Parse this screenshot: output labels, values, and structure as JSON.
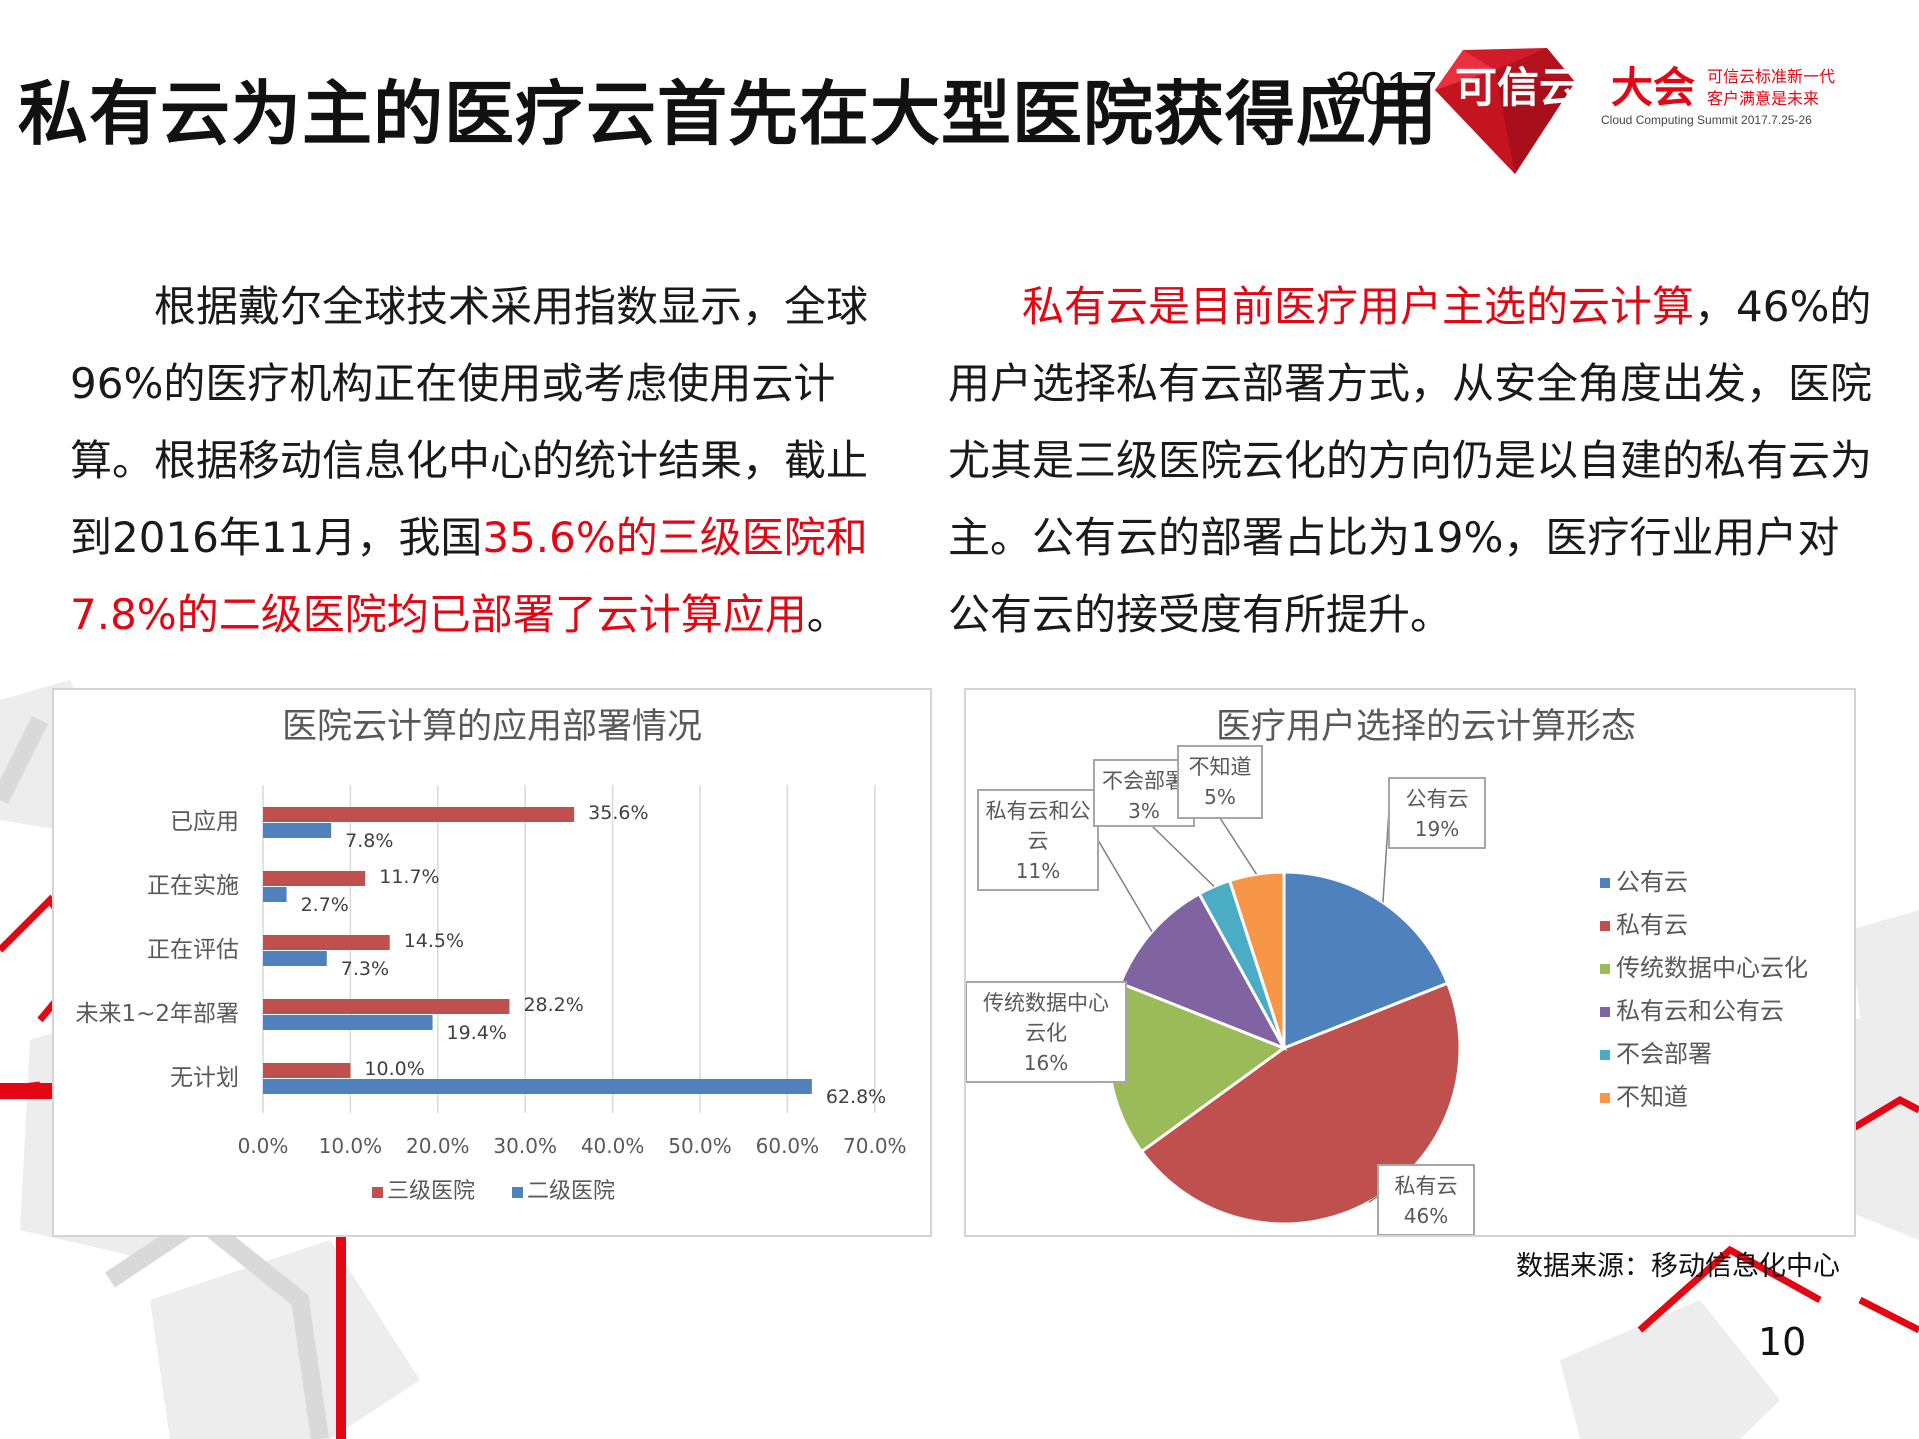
{
  "slide": {
    "title": "私有云为主的医疗云首先在大型医院获得应用",
    "page_number": "10",
    "source_note": "数据来源：移动信息化中心"
  },
  "logo": {
    "year": "2017",
    "brand_a": "可信云",
    "brand_b": "大会",
    "slogan_1": "可信云标准新一代",
    "slogan_2": "客户满意是未来",
    "subtitle": "Cloud Computing Summit 2017.7.25-26"
  },
  "text_left": {
    "segments": [
      {
        "text": "根据戴尔全球技术采用指数显示，全球96%的医疗机构正在使用或考虑使用云计算。根据移动信息化中心的统计结果，截止到2016年11月，我国",
        "highlight": false
      },
      {
        "text": "35.6%的三级医院和7.8%的二级医院均已部署了云计算应用",
        "highlight": true
      },
      {
        "text": "。",
        "highlight": false
      }
    ]
  },
  "text_right": {
    "segments": [
      {
        "text": "私有云是目前医疗用户主选的云计算",
        "highlight": true
      },
      {
        "text": "，46%的用户选择私有云部署方式，从安全角度出发，医院尤其是三级医院云化的方向仍是以自建的私有云为主。公有云的部署占比为19%，医疗行业用户对公有云的接受度有所提升。",
        "highlight": false
      }
    ]
  },
  "colors": {
    "accent_red": "#e30613",
    "bar_tier3": "#c0504d",
    "bar_tier2": "#4f81bd",
    "pie_public": "#4f81bd",
    "pie_private": "#c0504d",
    "pie_traditional": "#9bbb59",
    "pie_hybrid": "#8064a2",
    "pie_nodeploy": "#4bacc6",
    "pie_unknown": "#f79646"
  },
  "chart_data": [
    {
      "type": "bar",
      "orientation": "horizontal",
      "title": "医院云计算的应用部署情况",
      "categories": [
        "已应用",
        "正在实施",
        "正在评估",
        "未来1~2年部署",
        "无计划"
      ],
      "series": [
        {
          "name": "三级医院",
          "color": "#c0504d",
          "values": [
            35.6,
            11.7,
            14.5,
            28.2,
            10.0
          ],
          "labels": [
            "35.6%",
            "11.7%",
            "14.5%",
            "28.2%",
            "10.0%"
          ]
        },
        {
          "name": "二级医院",
          "color": "#4f81bd",
          "values": [
            7.8,
            2.7,
            7.3,
            19.4,
            62.8
          ],
          "labels": [
            "7.8%",
            "2.7%",
            "7.3%",
            "19.4%",
            "62.8%"
          ]
        }
      ],
      "xlim": [
        0,
        70
      ],
      "xticks": [
        "0.0%",
        "10.0%",
        "20.0%",
        "30.0%",
        "40.0%",
        "50.0%",
        "60.0%",
        "70.0%"
      ],
      "grid": true,
      "legend": "bottom"
    },
    {
      "type": "pie",
      "title": "医疗用户选择的云计算形态",
      "slices": [
        {
          "name": "公有云",
          "value": 19,
          "label": "19%",
          "color": "#4f81bd"
        },
        {
          "name": "私有云",
          "value": 46,
          "label": "46%",
          "color": "#c0504d"
        },
        {
          "name": "传统数据中心云化",
          "value": 16,
          "label": "16%",
          "color": "#9bbb59"
        },
        {
          "name": "私有云和公有云",
          "value": 11,
          "label": "11%",
          "color": "#8064a2"
        },
        {
          "name": "不会部署",
          "value": 3,
          "label": "3%",
          "color": "#4bacc6"
        },
        {
          "name": "不知道",
          "value": 5,
          "label": "5%",
          "color": "#f79646"
        }
      ],
      "callout_names": [
        "公有云",
        "私有云",
        "传统数据中心云化",
        "私有云和公有云",
        "不会部署",
        "不知道"
      ],
      "legend": "right"
    }
  ]
}
